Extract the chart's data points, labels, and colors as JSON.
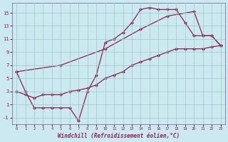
{
  "xlabel": "Windchill (Refroidissement éolien,°C)",
  "bg_color": "#cce8f0",
  "grid_color": "#99ccbb",
  "line_color": "#882255",
  "xlim": [
    -0.5,
    23.5
  ],
  "ylim": [
    -2,
    16.5
  ],
  "xticks": [
    0,
    1,
    2,
    3,
    4,
    5,
    6,
    7,
    8,
    9,
    10,
    11,
    12,
    13,
    14,
    15,
    16,
    17,
    18,
    19,
    20,
    21,
    22,
    23
  ],
  "yticks": [
    -1,
    1,
    3,
    5,
    7,
    9,
    11,
    13,
    15
  ],
  "line1_x": [
    0,
    1,
    2,
    3,
    4,
    5,
    6,
    7,
    8,
    9,
    10,
    11,
    12,
    13,
    14,
    15,
    16,
    17,
    18,
    19,
    20,
    21,
    22,
    23
  ],
  "line1_y": [
    6,
    3,
    0.5,
    0.5,
    0.5,
    0.5,
    0.5,
    -1.5,
    3.0,
    5.5,
    10.5,
    11.0,
    12.0,
    13.5,
    15.5,
    15.8,
    15.5,
    15.5,
    15.5,
    13.5,
    11.5,
    11.5,
    11.5,
    10.0
  ],
  "line2_x": [
    0,
    1,
    2,
    3,
    4,
    5,
    6,
    7,
    8,
    9,
    10,
    11,
    12,
    13,
    14,
    15,
    16,
    17,
    18,
    19,
    20,
    21,
    22,
    23
  ],
  "line2_y": [
    3.0,
    2.5,
    2.0,
    2.5,
    2.5,
    2.5,
    3.0,
    3.2,
    3.5,
    4.0,
    5.0,
    5.5,
    6.0,
    7.0,
    7.5,
    8.0,
    8.5,
    9.0,
    9.5,
    9.5,
    9.5,
    9.5,
    9.8,
    10.0
  ],
  "line3_x": [
    0,
    5,
    10,
    14,
    17,
    20,
    21,
    22,
    23
  ],
  "line3_y": [
    6.0,
    7.0,
    9.5,
    12.5,
    14.5,
    15.2,
    11.5,
    11.5,
    10.0
  ]
}
